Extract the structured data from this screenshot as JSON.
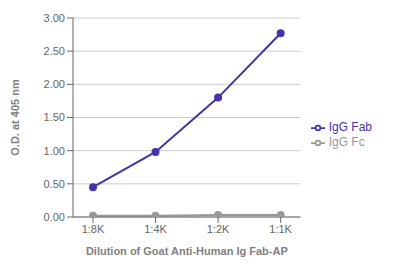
{
  "chart_data": {
    "type": "line",
    "categories": [
      "1:8K",
      "1:4K",
      "1:2K",
      "1:1K"
    ],
    "series": [
      {
        "name": "IgG Fab",
        "color": "#4433aa",
        "values": [
          0.45,
          0.98,
          1.8,
          2.77
        ],
        "marker": "o"
      },
      {
        "name": "IgG Fc",
        "color": "#999999",
        "values": [
          0.02,
          0.02,
          0.03,
          0.03
        ],
        "marker": "o"
      }
    ],
    "x_label": "Dilution of Goat Anti-Human Ig Fab-AP",
    "y_label": "O.D. at 405 nm",
    "ylim": [
      0,
      3.0
    ],
    "yticks": [
      {
        "value": 0,
        "label": "0.00"
      },
      {
        "value": 0.5,
        "label": "0.50"
      },
      {
        "value": 1.0,
        "label": "1.00"
      },
      {
        "value": 1.5,
        "label": "1.50"
      },
      {
        "value": 2.0,
        "label": "2.00"
      },
      {
        "value": 2.5,
        "label": "2.50"
      },
      {
        "value": 3.0,
        "label": "3.00"
      }
    ],
    "grid": true,
    "legend": "right"
  }
}
